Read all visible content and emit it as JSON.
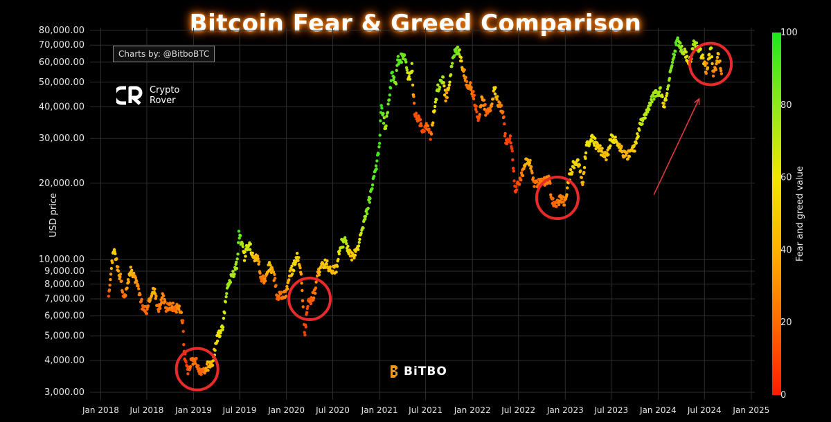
{
  "title": "Bitcoin Fear & Greed Comparison",
  "credit": "Charts by: @BitboBTC",
  "logo": {
    "line1": "Crypto",
    "line2": "Rover",
    "icon": "crypto-rover-logo"
  },
  "watermark": {
    "text": "BiTBO",
    "icon": "bitbo-logo"
  },
  "colors": {
    "background": "#000000",
    "grid": "#2e2e2e",
    "highlight_circle": "#e82a2a",
    "arrow": "#e03a3a",
    "scale": [
      "#ff1a00",
      "#ff6a00",
      "#ffb000",
      "#f2e600",
      "#8fe81c",
      "#1de61d"
    ]
  },
  "chart_data": {
    "type": "scatter",
    "title": "Bitcoin Fear & Greed Comparison",
    "ylabel": "USD price",
    "y_scale": "log",
    "ylim": [
      2800,
      82000
    ],
    "xlim": [
      "2017-11-20",
      "2025-01-15"
    ],
    "y_ticks": [
      3000,
      4000,
      5000,
      6000,
      7000,
      8000,
      9000,
      10000,
      20000,
      30000,
      40000,
      50000,
      60000,
      70000,
      80000
    ],
    "y_tick_labels": [
      "3,000.00",
      "4,000.00",
      "5,000.00",
      "6,000.00",
      "7,000.00",
      "8,000.00",
      "9,000.00",
      "10,000.00",
      "20,000.00",
      "30,000.00",
      "40,000.00",
      "50,000.00",
      "60,000.00",
      "70,000.00",
      "80,000.00"
    ],
    "x_ticks": [
      "2018-01-01",
      "2018-07-01",
      "2019-01-01",
      "2019-07-01",
      "2020-01-01",
      "2020-07-01",
      "2021-01-01",
      "2021-07-01",
      "2022-01-01",
      "2022-07-01",
      "2023-01-01",
      "2023-07-01",
      "2024-01-01",
      "2024-07-01",
      "2025-01-01"
    ],
    "x_tick_labels": [
      "Jan 2018",
      "Jul 2018",
      "Jan 2019",
      "Jul 2019",
      "Jan 2020",
      "Jul 2020",
      "Jan 2021",
      "Jul 2021",
      "Jan 2022",
      "Jul 2022",
      "Jan 2023",
      "Jul 2023",
      "Jan 2024",
      "Jul 2024",
      "Jan 2025"
    ],
    "grid": true,
    "colorbar": {
      "label": "Fear and greed value",
      "range": [
        0,
        100
      ],
      "ticks": [
        0,
        20,
        40,
        60,
        80,
        100
      ]
    },
    "points": [
      {
        "x": "2018-02-01",
        "y": 6950,
        "fg": 10
      },
      {
        "x": "2018-02-08",
        "y": 8200,
        "fg": 30
      },
      {
        "x": "2018-02-20",
        "y": 11000,
        "fg": 52
      },
      {
        "x": "2018-02-27",
        "y": 10600,
        "fg": 48
      },
      {
        "x": "2018-03-10",
        "y": 9000,
        "fg": 36
      },
      {
        "x": "2018-03-20",
        "y": 8500,
        "fg": 33
      },
      {
        "x": "2018-04-01",
        "y": 6900,
        "fg": 15
      },
      {
        "x": "2018-04-15",
        "y": 8000,
        "fg": 36
      },
      {
        "x": "2018-05-01",
        "y": 9200,
        "fg": 45
      },
      {
        "x": "2018-05-15",
        "y": 8400,
        "fg": 34
      },
      {
        "x": "2018-06-01",
        "y": 7500,
        "fg": 28
      },
      {
        "x": "2018-06-15",
        "y": 6500,
        "fg": 18
      },
      {
        "x": "2018-07-01",
        "y": 6300,
        "fg": 20
      },
      {
        "x": "2018-07-20",
        "y": 7400,
        "fg": 38
      },
      {
        "x": "2018-08-01",
        "y": 7600,
        "fg": 42
      },
      {
        "x": "2018-08-15",
        "y": 6300,
        "fg": 20
      },
      {
        "x": "2018-09-01",
        "y": 7100,
        "fg": 30
      },
      {
        "x": "2018-09-15",
        "y": 6500,
        "fg": 22
      },
      {
        "x": "2018-10-01",
        "y": 6600,
        "fg": 25
      },
      {
        "x": "2018-10-20",
        "y": 6450,
        "fg": 22
      },
      {
        "x": "2018-11-10",
        "y": 6350,
        "fg": 35
      },
      {
        "x": "2018-11-20",
        "y": 5600,
        "fg": 14
      },
      {
        "x": "2018-11-25",
        "y": 4300,
        "fg": 8
      },
      {
        "x": "2018-12-10",
        "y": 3500,
        "fg": 10
      },
      {
        "x": "2018-12-20",
        "y": 3900,
        "fg": 22
      },
      {
        "x": "2019-01-10",
        "y": 4000,
        "fg": 22
      },
      {
        "x": "2019-01-25",
        "y": 3600,
        "fg": 18
      },
      {
        "x": "2019-02-10",
        "y": 3600,
        "fg": 20
      },
      {
        "x": "2019-02-25",
        "y": 3800,
        "fg": 40
      },
      {
        "x": "2019-03-15",
        "y": 3900,
        "fg": 45
      },
      {
        "x": "2019-04-05",
        "y": 4950,
        "fg": 58
      },
      {
        "x": "2019-04-25",
        "y": 5400,
        "fg": 62
      },
      {
        "x": "2019-05-15",
        "y": 8000,
        "fg": 78
      },
      {
        "x": "2019-06-01",
        "y": 8500,
        "fg": 72
      },
      {
        "x": "2019-06-20",
        "y": 9500,
        "fg": 78
      },
      {
        "x": "2019-06-28",
        "y": 12500,
        "fg": 92
      },
      {
        "x": "2019-07-10",
        "y": 11500,
        "fg": 76
      },
      {
        "x": "2019-07-20",
        "y": 10200,
        "fg": 58
      },
      {
        "x": "2019-08-05",
        "y": 11700,
        "fg": 70
      },
      {
        "x": "2019-08-25",
        "y": 10200,
        "fg": 48
      },
      {
        "x": "2019-09-10",
        "y": 10300,
        "fg": 42
      },
      {
        "x": "2019-09-25",
        "y": 8300,
        "fg": 18
      },
      {
        "x": "2019-10-10",
        "y": 8400,
        "fg": 30
      },
      {
        "x": "2019-10-26",
        "y": 9500,
        "fg": 50
      },
      {
        "x": "2019-11-15",
        "y": 8500,
        "fg": 30
      },
      {
        "x": "2019-11-25",
        "y": 7100,
        "fg": 15
      },
      {
        "x": "2019-12-10",
        "y": 7300,
        "fg": 22
      },
      {
        "x": "2019-12-28",
        "y": 7300,
        "fg": 28
      },
      {
        "x": "2020-01-15",
        "y": 8700,
        "fg": 45
      },
      {
        "x": "2020-02-01",
        "y": 9500,
        "fg": 55
      },
      {
        "x": "2020-02-14",
        "y": 10300,
        "fg": 52
      },
      {
        "x": "2020-02-28",
        "y": 8700,
        "fg": 35
      },
      {
        "x": "2020-03-12",
        "y": 5000,
        "fg": 8
      },
      {
        "x": "2020-03-25",
        "y": 6600,
        "fg": 12
      },
      {
        "x": "2020-04-10",
        "y": 7000,
        "fg": 18
      },
      {
        "x": "2020-04-25",
        "y": 7600,
        "fg": 25
      },
      {
        "x": "2020-05-05",
        "y": 8900,
        "fg": 40
      },
      {
        "x": "2020-05-20",
        "y": 9500,
        "fg": 48
      },
      {
        "x": "2020-06-05",
        "y": 9600,
        "fg": 50
      },
      {
        "x": "2020-06-25",
        "y": 9200,
        "fg": 42
      },
      {
        "x": "2020-07-15",
        "y": 9200,
        "fg": 45
      },
      {
        "x": "2020-08-01",
        "y": 11500,
        "fg": 72
      },
      {
        "x": "2020-08-20",
        "y": 11800,
        "fg": 75
      },
      {
        "x": "2020-09-10",
        "y": 10300,
        "fg": 46
      },
      {
        "x": "2020-10-01",
        "y": 10600,
        "fg": 52
      },
      {
        "x": "2020-10-25",
        "y": 13000,
        "fg": 72
      },
      {
        "x": "2020-11-15",
        "y": 16000,
        "fg": 82
      },
      {
        "x": "2020-12-01",
        "y": 19000,
        "fg": 88
      },
      {
        "x": "2020-12-20",
        "y": 23500,
        "fg": 90
      },
      {
        "x": "2021-01-01",
        "y": 29000,
        "fg": 93
      },
      {
        "x": "2021-01-08",
        "y": 40000,
        "fg": 95
      },
      {
        "x": "2021-01-25",
        "y": 32500,
        "fg": 72
      },
      {
        "x": "2021-02-10",
        "y": 46000,
        "fg": 90
      },
      {
        "x": "2021-02-21",
        "y": 56000,
        "fg": 93
      },
      {
        "x": "2021-03-05",
        "y": 48000,
        "fg": 78
      },
      {
        "x": "2021-03-13",
        "y": 61000,
        "fg": 90
      },
      {
        "x": "2021-04-13",
        "y": 63500,
        "fg": 85
      },
      {
        "x": "2021-04-25",
        "y": 50000,
        "fg": 60
      },
      {
        "x": "2021-05-08",
        "y": 58000,
        "fg": 70
      },
      {
        "x": "2021-05-19",
        "y": 37000,
        "fg": 12
      },
      {
        "x": "2021-06-05",
        "y": 36000,
        "fg": 15
      },
      {
        "x": "2021-06-22",
        "y": 32000,
        "fg": 10
      },
      {
        "x": "2021-07-10",
        "y": 33800,
        "fg": 20
      },
      {
        "x": "2021-07-20",
        "y": 30000,
        "fg": 12
      },
      {
        "x": "2021-08-05",
        "y": 40000,
        "fg": 62
      },
      {
        "x": "2021-08-20",
        "y": 48000,
        "fg": 75
      },
      {
        "x": "2021-09-06",
        "y": 52000,
        "fg": 78
      },
      {
        "x": "2021-09-20",
        "y": 42500,
        "fg": 30
      },
      {
        "x": "2021-10-10",
        "y": 56000,
        "fg": 75
      },
      {
        "x": "2021-10-20",
        "y": 64500,
        "fg": 85
      },
      {
        "x": "2021-11-08",
        "y": 67500,
        "fg": 82
      },
      {
        "x": "2021-11-25",
        "y": 57000,
        "fg": 40
      },
      {
        "x": "2021-12-10",
        "y": 49000,
        "fg": 22
      },
      {
        "x": "2021-12-28",
        "y": 47500,
        "fg": 25
      },
      {
        "x": "2022-01-10",
        "y": 42000,
        "fg": 15
      },
      {
        "x": "2022-01-24",
        "y": 36000,
        "fg": 10
      },
      {
        "x": "2022-02-10",
        "y": 44000,
        "fg": 40
      },
      {
        "x": "2022-02-24",
        "y": 37500,
        "fg": 15
      },
      {
        "x": "2022-03-15",
        "y": 39000,
        "fg": 25
      },
      {
        "x": "2022-03-29",
        "y": 47500,
        "fg": 58
      },
      {
        "x": "2022-04-15",
        "y": 40500,
        "fg": 28
      },
      {
        "x": "2022-05-01",
        "y": 38500,
        "fg": 20
      },
      {
        "x": "2022-05-12",
        "y": 29000,
        "fg": 10
      },
      {
        "x": "2022-06-01",
        "y": 30000,
        "fg": 8
      },
      {
        "x": "2022-06-18",
        "y": 19000,
        "fg": 6
      },
      {
        "x": "2022-07-05",
        "y": 20000,
        "fg": 15
      },
      {
        "x": "2022-07-28",
        "y": 24000,
        "fg": 40
      },
      {
        "x": "2022-08-14",
        "y": 24500,
        "fg": 42
      },
      {
        "x": "2022-08-30",
        "y": 20000,
        "fg": 22
      },
      {
        "x": "2022-09-15",
        "y": 20000,
        "fg": 22
      },
      {
        "x": "2022-10-05",
        "y": 20300,
        "fg": 22
      },
      {
        "x": "2022-10-30",
        "y": 20600,
        "fg": 30
      },
      {
        "x": "2022-11-10",
        "y": 17000,
        "fg": 18
      },
      {
        "x": "2022-11-25",
        "y": 16500,
        "fg": 20
      },
      {
        "x": "2022-12-15",
        "y": 17500,
        "fg": 28
      },
      {
        "x": "2022-12-30",
        "y": 16600,
        "fg": 25
      },
      {
        "x": "2023-01-15",
        "y": 20800,
        "fg": 48
      },
      {
        "x": "2023-02-01",
        "y": 23500,
        "fg": 55
      },
      {
        "x": "2023-02-20",
        "y": 24500,
        "fg": 55
      },
      {
        "x": "2023-03-10",
        "y": 20000,
        "fg": 38
      },
      {
        "x": "2023-03-25",
        "y": 27500,
        "fg": 58
      },
      {
        "x": "2023-04-14",
        "y": 30500,
        "fg": 62
      },
      {
        "x": "2023-05-10",
        "y": 27500,
        "fg": 50
      },
      {
        "x": "2023-06-15",
        "y": 25500,
        "fg": 45
      },
      {
        "x": "2023-07-01",
        "y": 30500,
        "fg": 62
      },
      {
        "x": "2023-07-25",
        "y": 29200,
        "fg": 52
      },
      {
        "x": "2023-08-18",
        "y": 26000,
        "fg": 38
      },
      {
        "x": "2023-09-10",
        "y": 25800,
        "fg": 42
      },
      {
        "x": "2023-10-01",
        "y": 27500,
        "fg": 50
      },
      {
        "x": "2023-10-25",
        "y": 34500,
        "fg": 70
      },
      {
        "x": "2023-11-15",
        "y": 37000,
        "fg": 72
      },
      {
        "x": "2023-12-10",
        "y": 44000,
        "fg": 78
      },
      {
        "x": "2024-01-10",
        "y": 46500,
        "fg": 75
      },
      {
        "x": "2024-01-24",
        "y": 40000,
        "fg": 52
      },
      {
        "x": "2024-02-15",
        "y": 52000,
        "fg": 80
      },
      {
        "x": "2024-03-05",
        "y": 66000,
        "fg": 88
      },
      {
        "x": "2024-03-14",
        "y": 73000,
        "fg": 90
      },
      {
        "x": "2024-04-01",
        "y": 68000,
        "fg": 78
      },
      {
        "x": "2024-04-20",
        "y": 64000,
        "fg": 65
      },
      {
        "x": "2024-05-01",
        "y": 58000,
        "fg": 55
      },
      {
        "x": "2024-05-20",
        "y": 70000,
        "fg": 75
      },
      {
        "x": "2024-06-10",
        "y": 68000,
        "fg": 72
      },
      {
        "x": "2024-06-28",
        "y": 61000,
        "fg": 50
      },
      {
        "x": "2024-07-08",
        "y": 56000,
        "fg": 30
      },
      {
        "x": "2024-07-28",
        "y": 68000,
        "fg": 68
      },
      {
        "x": "2024-08-05",
        "y": 53000,
        "fg": 22
      },
      {
        "x": "2024-08-25",
        "y": 64000,
        "fg": 45
      },
      {
        "x": "2024-09-06",
        "y": 54000,
        "fg": 25
      }
    ],
    "highlight_circles": [
      {
        "x": "2019-01-15",
        "y": 3700
      },
      {
        "x": "2020-04-01",
        "y": 7000
      },
      {
        "x": "2022-12-01",
        "y": 17500
      },
      {
        "x": "2024-07-25",
        "y": 59000
      }
    ],
    "arrow": {
      "from": {
        "x": "2023-12-15",
        "y": 18000
      },
      "to": {
        "x": "2024-06-10",
        "y": 43000
      }
    }
  }
}
